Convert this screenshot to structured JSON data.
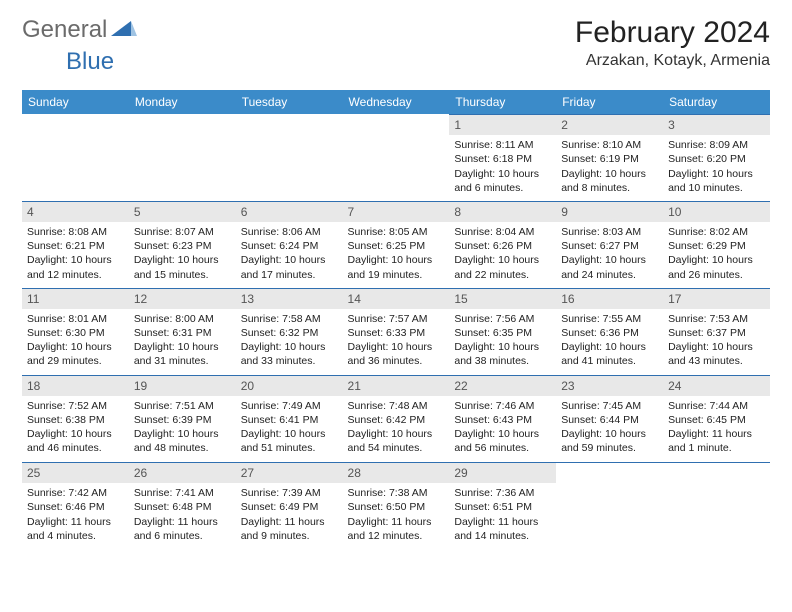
{
  "brand": {
    "general": "General",
    "blue": "Blue"
  },
  "title": "February 2024",
  "location": "Arzakan, Kotayk, Armenia",
  "weekday_labels": [
    "Sunday",
    "Monday",
    "Tuesday",
    "Wednesday",
    "Thursday",
    "Friday",
    "Saturday"
  ],
  "colors": {
    "header_bg": "#3b8bc9",
    "header_text": "#ffffff",
    "daynum_bg": "#e8e8e8",
    "daynum_text": "#555555",
    "cell_top_border": "#2f6fb0",
    "body_text": "#222222",
    "brand_gray": "#6b6b6b",
    "brand_blue": "#2f6fb0"
  },
  "grid": [
    [
      null,
      null,
      null,
      null,
      {
        "n": "1",
        "sr": "8:11 AM",
        "ss": "6:18 PM",
        "d1": "Daylight: 10 hours",
        "d2": "and 6 minutes."
      },
      {
        "n": "2",
        "sr": "8:10 AM",
        "ss": "6:19 PM",
        "d1": "Daylight: 10 hours",
        "d2": "and 8 minutes."
      },
      {
        "n": "3",
        "sr": "8:09 AM",
        "ss": "6:20 PM",
        "d1": "Daylight: 10 hours",
        "d2": "and 10 minutes."
      }
    ],
    [
      {
        "n": "4",
        "sr": "8:08 AM",
        "ss": "6:21 PM",
        "d1": "Daylight: 10 hours",
        "d2": "and 12 minutes."
      },
      {
        "n": "5",
        "sr": "8:07 AM",
        "ss": "6:23 PM",
        "d1": "Daylight: 10 hours",
        "d2": "and 15 minutes."
      },
      {
        "n": "6",
        "sr": "8:06 AM",
        "ss": "6:24 PM",
        "d1": "Daylight: 10 hours",
        "d2": "and 17 minutes."
      },
      {
        "n": "7",
        "sr": "8:05 AM",
        "ss": "6:25 PM",
        "d1": "Daylight: 10 hours",
        "d2": "and 19 minutes."
      },
      {
        "n": "8",
        "sr": "8:04 AM",
        "ss": "6:26 PM",
        "d1": "Daylight: 10 hours",
        "d2": "and 22 minutes."
      },
      {
        "n": "9",
        "sr": "8:03 AM",
        "ss": "6:27 PM",
        "d1": "Daylight: 10 hours",
        "d2": "and 24 minutes."
      },
      {
        "n": "10",
        "sr": "8:02 AM",
        "ss": "6:29 PM",
        "d1": "Daylight: 10 hours",
        "d2": "and 26 minutes."
      }
    ],
    [
      {
        "n": "11",
        "sr": "8:01 AM",
        "ss": "6:30 PM",
        "d1": "Daylight: 10 hours",
        "d2": "and 29 minutes."
      },
      {
        "n": "12",
        "sr": "8:00 AM",
        "ss": "6:31 PM",
        "d1": "Daylight: 10 hours",
        "d2": "and 31 minutes."
      },
      {
        "n": "13",
        "sr": "7:58 AM",
        "ss": "6:32 PM",
        "d1": "Daylight: 10 hours",
        "d2": "and 33 minutes."
      },
      {
        "n": "14",
        "sr": "7:57 AM",
        "ss": "6:33 PM",
        "d1": "Daylight: 10 hours",
        "d2": "and 36 minutes."
      },
      {
        "n": "15",
        "sr": "7:56 AM",
        "ss": "6:35 PM",
        "d1": "Daylight: 10 hours",
        "d2": "and 38 minutes."
      },
      {
        "n": "16",
        "sr": "7:55 AM",
        "ss": "6:36 PM",
        "d1": "Daylight: 10 hours",
        "d2": "and 41 minutes."
      },
      {
        "n": "17",
        "sr": "7:53 AM",
        "ss": "6:37 PM",
        "d1": "Daylight: 10 hours",
        "d2": "and 43 minutes."
      }
    ],
    [
      {
        "n": "18",
        "sr": "7:52 AM",
        "ss": "6:38 PM",
        "d1": "Daylight: 10 hours",
        "d2": "and 46 minutes."
      },
      {
        "n": "19",
        "sr": "7:51 AM",
        "ss": "6:39 PM",
        "d1": "Daylight: 10 hours",
        "d2": "and 48 minutes."
      },
      {
        "n": "20",
        "sr": "7:49 AM",
        "ss": "6:41 PM",
        "d1": "Daylight: 10 hours",
        "d2": "and 51 minutes."
      },
      {
        "n": "21",
        "sr": "7:48 AM",
        "ss": "6:42 PM",
        "d1": "Daylight: 10 hours",
        "d2": "and 54 minutes."
      },
      {
        "n": "22",
        "sr": "7:46 AM",
        "ss": "6:43 PM",
        "d1": "Daylight: 10 hours",
        "d2": "and 56 minutes."
      },
      {
        "n": "23",
        "sr": "7:45 AM",
        "ss": "6:44 PM",
        "d1": "Daylight: 10 hours",
        "d2": "and 59 minutes."
      },
      {
        "n": "24",
        "sr": "7:44 AM",
        "ss": "6:45 PM",
        "d1": "Daylight: 11 hours",
        "d2": "and 1 minute."
      }
    ],
    [
      {
        "n": "25",
        "sr": "7:42 AM",
        "ss": "6:46 PM",
        "d1": "Daylight: 11 hours",
        "d2": "and 4 minutes."
      },
      {
        "n": "26",
        "sr": "7:41 AM",
        "ss": "6:48 PM",
        "d1": "Daylight: 11 hours",
        "d2": "and 6 minutes."
      },
      {
        "n": "27",
        "sr": "7:39 AM",
        "ss": "6:49 PM",
        "d1": "Daylight: 11 hours",
        "d2": "and 9 minutes."
      },
      {
        "n": "28",
        "sr": "7:38 AM",
        "ss": "6:50 PM",
        "d1": "Daylight: 11 hours",
        "d2": "and 12 minutes."
      },
      {
        "n": "29",
        "sr": "7:36 AM",
        "ss": "6:51 PM",
        "d1": "Daylight: 11 hours",
        "d2": "and 14 minutes."
      },
      null,
      null
    ]
  ],
  "labels": {
    "sunrise_prefix": "Sunrise: ",
    "sunset_prefix": "Sunset: "
  }
}
